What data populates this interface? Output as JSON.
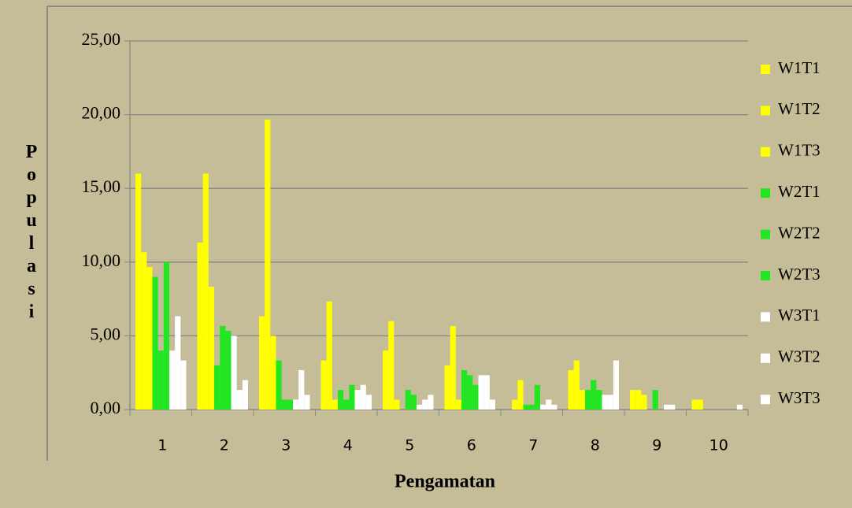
{
  "chart_data": {
    "type": "bar",
    "x_label": "Pengamatan",
    "y_label": "Populasi",
    "categories": [
      "1",
      "2",
      "3",
      "4",
      "5",
      "6",
      "7",
      "8",
      "9",
      "10"
    ],
    "series": [
      {
        "name": "W1T1",
        "color": "#ffff00",
        "values": [
          16,
          11.33,
          6.33,
          3.33,
          4,
          3,
          0,
          2.67,
          1.33,
          0.67
        ]
      },
      {
        "name": "W1T2",
        "color": "#ffff00",
        "values": [
          10.67,
          16,
          19.67,
          7.33,
          6,
          5.67,
          0.67,
          3.33,
          1.33,
          0.67
        ]
      },
      {
        "name": "W1T3",
        "color": "#ffff00",
        "values": [
          9.67,
          8.33,
          5,
          0.67,
          0.67,
          0.67,
          2,
          1.33,
          1,
          0
        ]
      },
      {
        "name": "W2T1",
        "color": "#22e622",
        "values": [
          9,
          3,
          3.33,
          1.33,
          0,
          2.67,
          0.33,
          1.33,
          0,
          0
        ]
      },
      {
        "name": "W2T2",
        "color": "#22e622",
        "values": [
          4,
          5.67,
          0.67,
          0.67,
          1.33,
          2.33,
          0.33,
          2,
          1.33,
          0
        ]
      },
      {
        "name": "W2T3",
        "color": "#22e622",
        "values": [
          10,
          5.33,
          0.67,
          1.67,
          1,
          1.67,
          1.67,
          1.33,
          0,
          0
        ]
      },
      {
        "name": "W3T1",
        "color": "#ffffff",
        "values": [
          4,
          5,
          0.67,
          1.33,
          0.33,
          2.33,
          0.33,
          1,
          0.33,
          0
        ]
      },
      {
        "name": "W3T2",
        "color": "#ffffff",
        "values": [
          6.33,
          1.33,
          2.67,
          1.67,
          0.67,
          2.33,
          0.67,
          1,
          0.33,
          0
        ]
      },
      {
        "name": "W3T3",
        "color": "#ffffff",
        "values": [
          3.33,
          2,
          1,
          1,
          1,
          0.67,
          0.33,
          3.33,
          0,
          0.33
        ]
      }
    ],
    "ylim": [
      0,
      25
    ],
    "yticks": [
      {
        "value": 0,
        "label": "0,00"
      },
      {
        "value": 5,
        "label": "5,00"
      },
      {
        "value": 10,
        "label": "10,00"
      },
      {
        "value": 15,
        "label": "15,00"
      },
      {
        "value": 20,
        "label": "20,00"
      },
      {
        "value": 25,
        "label": "25,00"
      }
    ],
    "grid": true,
    "legend": "right"
  }
}
